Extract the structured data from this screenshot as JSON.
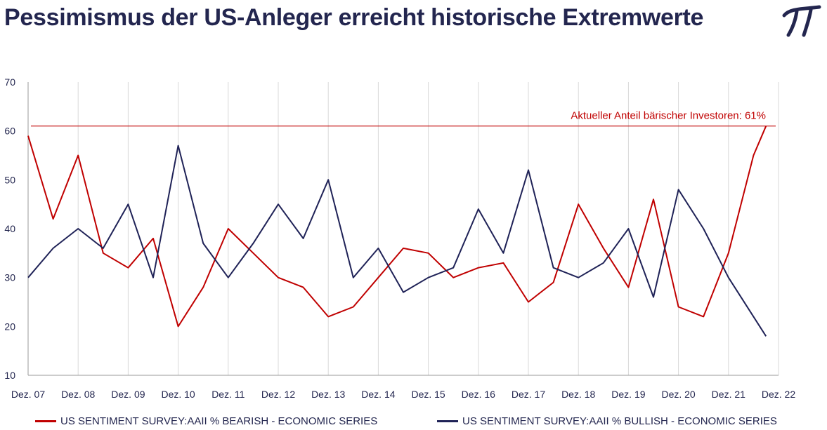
{
  "header": {
    "title": "Pessimismus der US-Anleger erreicht historische Extremwerte",
    "logo_icon": "pi-logo-icon"
  },
  "chart_data": {
    "type": "line",
    "title": "Pessimismus der US-Anleger erreicht historische Extremwerte",
    "xlabel": "",
    "ylabel": "",
    "x_tick_labels": [
      "Dez. 07",
      "Dez. 08",
      "Dez. 09",
      "Dez. 10",
      "Dez. 11",
      "Dez. 12",
      "Dez. 13",
      "Dez. 14",
      "Dez. 15",
      "Dez. 16",
      "Dez. 17",
      "Dez. 18",
      "Dez. 19",
      "Dez. 20",
      "Dez. 21",
      "Dez. 22"
    ],
    "xlim": [
      "Dez. 07",
      "Dez. 22"
    ],
    "ylim": [
      10,
      70
    ],
    "y_ticks": [
      10,
      20,
      30,
      40,
      50,
      60,
      70
    ],
    "grid": "vertical",
    "legend_position": "bottom",
    "x": [
      "Dez. 07",
      "Jun. 08",
      "Dez. 08",
      "Jun. 09",
      "Dez. 09",
      "Jun. 10",
      "Dez. 10",
      "Jun. 11",
      "Dez. 11",
      "Jun. 12",
      "Dez. 12",
      "Jun. 13",
      "Dez. 13",
      "Jun. 14",
      "Dez. 14",
      "Jun. 15",
      "Dez. 15",
      "Jun. 16",
      "Dez. 16",
      "Jun. 17",
      "Dez. 17",
      "Jun. 18",
      "Dez. 18",
      "Jun. 19",
      "Dez. 19",
      "Jun. 20",
      "Dez. 20",
      "Jun. 21",
      "Dez. 21",
      "Jun. 22",
      "Sep. 22"
    ],
    "series": [
      {
        "name": "US SENTIMENT SURVEY:AAII % BEARISH - ECONOMIC SERIES",
        "color": "#c00000",
        "values": [
          59,
          42,
          55,
          35,
          32,
          38,
          20,
          28,
          40,
          35,
          30,
          28,
          22,
          24,
          30,
          36,
          35,
          30,
          32,
          33,
          25,
          29,
          45,
          36,
          28,
          46,
          24,
          22,
          35,
          55,
          61
        ]
      },
      {
        "name": "US SENTIMENT SURVEY:AAII % BULLISH - ECONOMIC SERIES",
        "color": "#1f2257",
        "values": [
          30,
          36,
          40,
          36,
          45,
          30,
          57,
          37,
          30,
          37,
          45,
          38,
          50,
          30,
          36,
          27,
          30,
          32,
          44,
          35,
          52,
          32,
          30,
          33,
          40,
          26,
          48,
          40,
          30,
          22,
          18
        ]
      }
    ],
    "annotations": [
      {
        "text": "Aktueller Anteil bärischer Investoren: 61%",
        "y": 61,
        "color": "#c00000"
      }
    ]
  }
}
